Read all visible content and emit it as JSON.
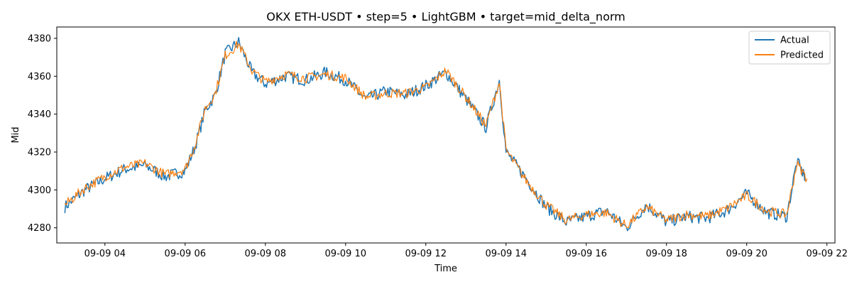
{
  "chart_data": {
    "type": "line",
    "title": "OKX ETH-USDT • step=5 • LightGBM • target=mid_delta_norm",
    "xlabel": "Time",
    "ylabel": "Mid",
    "x_range": [
      "09-09 02:48",
      "09-09 22:12"
    ],
    "ylim": [
      4272,
      4386
    ],
    "x_ticks": [
      "09-09 04",
      "09-09 06",
      "09-09 08",
      "09-09 10",
      "09-09 12",
      "09-09 14",
      "09-09 16",
      "09-09 18",
      "09-09 20",
      "09-09 22"
    ],
    "y_ticks": [
      4280,
      4300,
      4320,
      4340,
      4360,
      4380
    ],
    "grid": false,
    "legend_position": "top-right",
    "series": [
      {
        "name": "Actual",
        "color": "#1f77b4",
        "x": [
          "09-09 03:00",
          "09-09 03:30",
          "09-09 04:00",
          "09-09 04:30",
          "09-09 05:00",
          "09-09 05:30",
          "09-09 06:00",
          "09-09 06:15",
          "09-09 06:30",
          "09-09 06:45",
          "09-09 07:00",
          "09-09 07:20",
          "09-09 07:40",
          "09-09 08:00",
          "09-09 08:30",
          "09-09 09:00",
          "09-09 09:30",
          "09-09 10:00",
          "09-09 10:30",
          "09-09 11:00",
          "09-09 11:30",
          "09-09 12:00",
          "09-09 12:30",
          "09-09 13:00",
          "09-09 13:30",
          "09-09 13:50",
          "09-09 14:00",
          "09-09 14:30",
          "09-09 15:00",
          "09-09 15:30",
          "09-09 16:00",
          "09-09 16:30",
          "09-09 17:00",
          "09-09 17:30",
          "09-09 18:00",
          "09-09 18:30",
          "09-09 19:00",
          "09-09 19:30",
          "09-09 20:00",
          "09-09 20:30",
          "09-09 21:00",
          "09-09 21:15",
          "09-09 21:30"
        ],
        "values": [
          4291,
          4300,
          4306,
          4311,
          4313,
          4307,
          4310,
          4323,
          4342,
          4350,
          4372,
          4378,
          4362,
          4356,
          4360,
          4358,
          4362,
          4358,
          4348,
          4352,
          4350,
          4355,
          4362,
          4348,
          4333,
          4358,
          4320,
          4306,
          4291,
          4283,
          4286,
          4289,
          4280,
          4292,
          4283,
          4286,
          4285,
          4289,
          4298,
          4288,
          4286,
          4315,
          4305
        ]
      },
      {
        "name": "Predicted",
        "color": "#ff7f0e",
        "x": [
          "09-09 03:00",
          "09-09 03:30",
          "09-09 04:00",
          "09-09 04:30",
          "09-09 05:00",
          "09-09 05:30",
          "09-09 06:00",
          "09-09 06:15",
          "09-09 06:30",
          "09-09 06:45",
          "09-09 07:00",
          "09-09 07:20",
          "09-09 07:40",
          "09-09 08:00",
          "09-09 08:30",
          "09-09 09:00",
          "09-09 09:30",
          "09-09 10:00",
          "09-09 10:30",
          "09-09 11:00",
          "09-09 11:30",
          "09-09 12:00",
          "09-09 12:30",
          "09-09 13:00",
          "09-09 13:30",
          "09-09 13:50",
          "09-09 14:00",
          "09-09 14:30",
          "09-09 15:00",
          "09-09 15:30",
          "09-09 16:00",
          "09-09 16:30",
          "09-09 17:00",
          "09-09 17:30",
          "09-09 18:00",
          "09-09 18:30",
          "09-09 19:00",
          "09-09 19:30",
          "09-09 20:00",
          "09-09 20:30",
          "09-09 21:00",
          "09-09 21:15",
          "09-09 21:30"
        ],
        "values": [
          4292,
          4301,
          4307,
          4312,
          4314,
          4308,
          4311,
          4324,
          4343,
          4351,
          4371,
          4377,
          4363,
          4357,
          4361,
          4359,
          4361,
          4359,
          4349,
          4351,
          4351,
          4354,
          4363,
          4349,
          4334,
          4357,
          4321,
          4305,
          4292,
          4284,
          4287,
          4288,
          4281,
          4291,
          4284,
          4287,
          4286,
          4290,
          4297,
          4289,
          4287,
          4314,
          4306
        ]
      }
    ]
  }
}
